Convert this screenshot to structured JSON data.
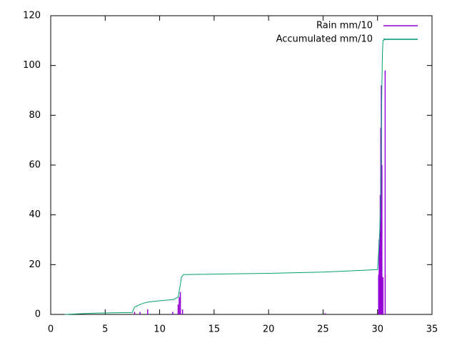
{
  "chart_data": {
    "type": "line",
    "series": [
      {
        "name": "Rain mm/10",
        "color": "#9400d3",
        "style": "impulses",
        "x": [
          7.7,
          8.2,
          8.9,
          11.2,
          11.7,
          11.8,
          11.9,
          12.1,
          25.2,
          30.1,
          30.15,
          30.2,
          30.25,
          30.3,
          30.35,
          30.4,
          30.5,
          30.7
        ],
        "values": [
          1,
          1,
          2,
          1,
          4,
          7,
          9,
          2,
          0.5,
          16,
          30,
          28,
          48,
          75,
          92,
          60,
          15,
          98
        ]
      },
      {
        "name": "Accumulated mm/10",
        "color": "#009e73",
        "style": "lines",
        "x": [
          1.3,
          4,
          7.5,
          7.7,
          8.5,
          9,
          10,
          11.3,
          11.7,
          11.9,
          12.0,
          12.2,
          15,
          20,
          25,
          30,
          30.1,
          30.2,
          30.3,
          30.35,
          30.4,
          30.45,
          30.5,
          30.7,
          33.5
        ],
        "values": [
          0,
          0.5,
          0.8,
          3,
          4.5,
          5,
          5.5,
          6,
          7,
          12,
          15,
          16,
          16.2,
          16.5,
          17,
          18,
          25,
          33,
          48,
          75,
          92,
          105,
          110,
          110.5,
          110.5
        ]
      }
    ],
    "xlim": [
      0,
      35
    ],
    "xticks": [
      0,
      5,
      10,
      15,
      20,
      25,
      30,
      35
    ],
    "ylim": [
      0,
      120
    ],
    "yticks": [
      0,
      20,
      40,
      60,
      80,
      100,
      120
    ],
    "legend": "top-right"
  }
}
